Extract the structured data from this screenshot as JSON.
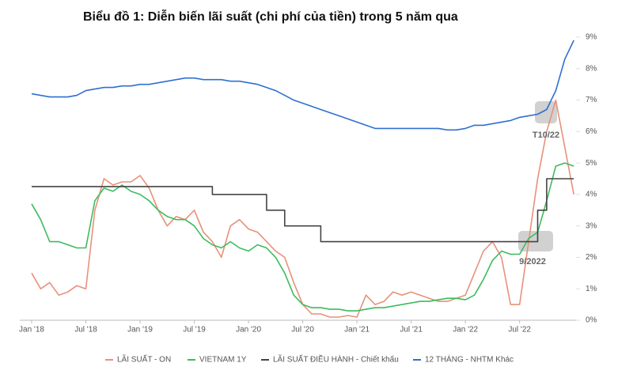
{
  "chart_data": {
    "type": "line",
    "title": "Biểu đồ 1: Diễn biến lãi suất (chi phí của tiền) trong 5 năm qua",
    "categories": [
      "Jan '18",
      null,
      null,
      null,
      null,
      null,
      "Jul '18",
      null,
      null,
      null,
      null,
      null,
      "Jan '19",
      null,
      null,
      null,
      null,
      null,
      "Jul '19",
      null,
      null,
      null,
      null,
      null,
      "Jan '20",
      null,
      null,
      null,
      null,
      null,
      "Jul '20",
      null,
      null,
      null,
      null,
      null,
      "Jan '21",
      null,
      null,
      null,
      null,
      null,
      "Jul '21",
      null,
      null,
      null,
      null,
      null,
      "Jan '22",
      null,
      null,
      null,
      null,
      null,
      "Jul '22",
      null,
      null,
      null,
      null,
      null,
      null
    ],
    "series": [
      {
        "name": "LÃI SUẤT - ON",
        "color": "#e8917a",
        "values": [
          1.5,
          1.0,
          1.2,
          0.8,
          0.9,
          1.1,
          1.0,
          3.5,
          4.5,
          4.3,
          4.4,
          4.4,
          4.6,
          4.2,
          3.5,
          3.0,
          3.3,
          3.2,
          3.5,
          2.8,
          2.5,
          2.0,
          3.0,
          3.2,
          2.9,
          2.8,
          2.5,
          2.2,
          2.0,
          1.2,
          0.5,
          0.2,
          0.2,
          0.1,
          0.1,
          0.15,
          0.1,
          0.8,
          0.5,
          0.6,
          0.9,
          0.8,
          0.9,
          0.8,
          0.7,
          0.6,
          0.6,
          0.7,
          0.8,
          1.5,
          2.2,
          2.5,
          2.0,
          0.5,
          0.5,
          2.5,
          4.5,
          6.0,
          7.0,
          5.5,
          4.0
        ]
      },
      {
        "name": "VIETNAM 1Y",
        "color": "#3dbb5e",
        "values": [
          3.7,
          3.2,
          2.5,
          2.5,
          2.4,
          2.3,
          2.3,
          3.8,
          4.2,
          4.1,
          4.3,
          4.1,
          4.0,
          3.8,
          3.5,
          3.3,
          3.2,
          3.2,
          3.0,
          2.6,
          2.4,
          2.3,
          2.5,
          2.3,
          2.2,
          2.4,
          2.3,
          2.0,
          1.5,
          0.8,
          0.5,
          0.4,
          0.4,
          0.35,
          0.35,
          0.3,
          0.3,
          0.35,
          0.4,
          0.4,
          0.45,
          0.5,
          0.55,
          0.6,
          0.6,
          0.65,
          0.7,
          0.7,
          0.65,
          0.8,
          1.3,
          1.9,
          2.2,
          2.1,
          2.1,
          2.6,
          2.8,
          3.8,
          4.9,
          5.0,
          4.9
        ]
      },
      {
        "name": "LÃI SUẤT ĐIỀU HÀNH - Chiết khấu",
        "color": "#444444",
        "step": true,
        "values": [
          4.25,
          4.25,
          4.25,
          4.25,
          4.25,
          4.25,
          4.25,
          4.25,
          4.25,
          4.25,
          4.25,
          4.25,
          4.25,
          4.25,
          4.25,
          4.25,
          4.25,
          4.25,
          4.25,
          4.25,
          4.0,
          4.0,
          4.0,
          4.0,
          4.0,
          4.0,
          3.5,
          3.5,
          3.0,
          3.0,
          3.0,
          3.0,
          2.5,
          2.5,
          2.5,
          2.5,
          2.5,
          2.5,
          2.5,
          2.5,
          2.5,
          2.5,
          2.5,
          2.5,
          2.5,
          2.5,
          2.5,
          2.5,
          2.5,
          2.5,
          2.5,
          2.5,
          2.5,
          2.5,
          2.5,
          2.5,
          3.5,
          4.5,
          4.5,
          4.5,
          4.5
        ]
      },
      {
        "name": "12 THÁNG - NHTM Khác",
        "color": "#2f6fd1",
        "values": [
          7.2,
          7.15,
          7.1,
          7.1,
          7.1,
          7.15,
          7.3,
          7.35,
          7.4,
          7.4,
          7.45,
          7.45,
          7.5,
          7.5,
          7.55,
          7.6,
          7.65,
          7.7,
          7.7,
          7.65,
          7.65,
          7.65,
          7.6,
          7.6,
          7.55,
          7.5,
          7.4,
          7.3,
          7.15,
          7.0,
          6.9,
          6.8,
          6.7,
          6.6,
          6.5,
          6.4,
          6.3,
          6.2,
          6.1,
          6.1,
          6.1,
          6.1,
          6.1,
          6.1,
          6.1,
          6.1,
          6.05,
          6.05,
          6.1,
          6.2,
          6.2,
          6.25,
          6.3,
          6.35,
          6.45,
          6.5,
          6.55,
          6.7,
          7.3,
          8.3,
          8.9
        ]
      }
    ],
    "ylim": [
      0,
      9
    ],
    "yticks": [
      {
        "value": 0,
        "label": "0%"
      },
      {
        "value": 1,
        "label": "1%"
      },
      {
        "value": 2,
        "label": "2%"
      },
      {
        "value": 3,
        "label": "3%"
      },
      {
        "value": 4,
        "label": "4%"
      },
      {
        "value": 5,
        "label": "5%"
      },
      {
        "value": 6,
        "label": "6%"
      },
      {
        "value": 7,
        "label": "7%"
      },
      {
        "value": 8,
        "label": "8%"
      },
      {
        "value": 9,
        "label": "9%"
      }
    ],
    "annotations": [
      "T10/22",
      "9/2022"
    ]
  }
}
